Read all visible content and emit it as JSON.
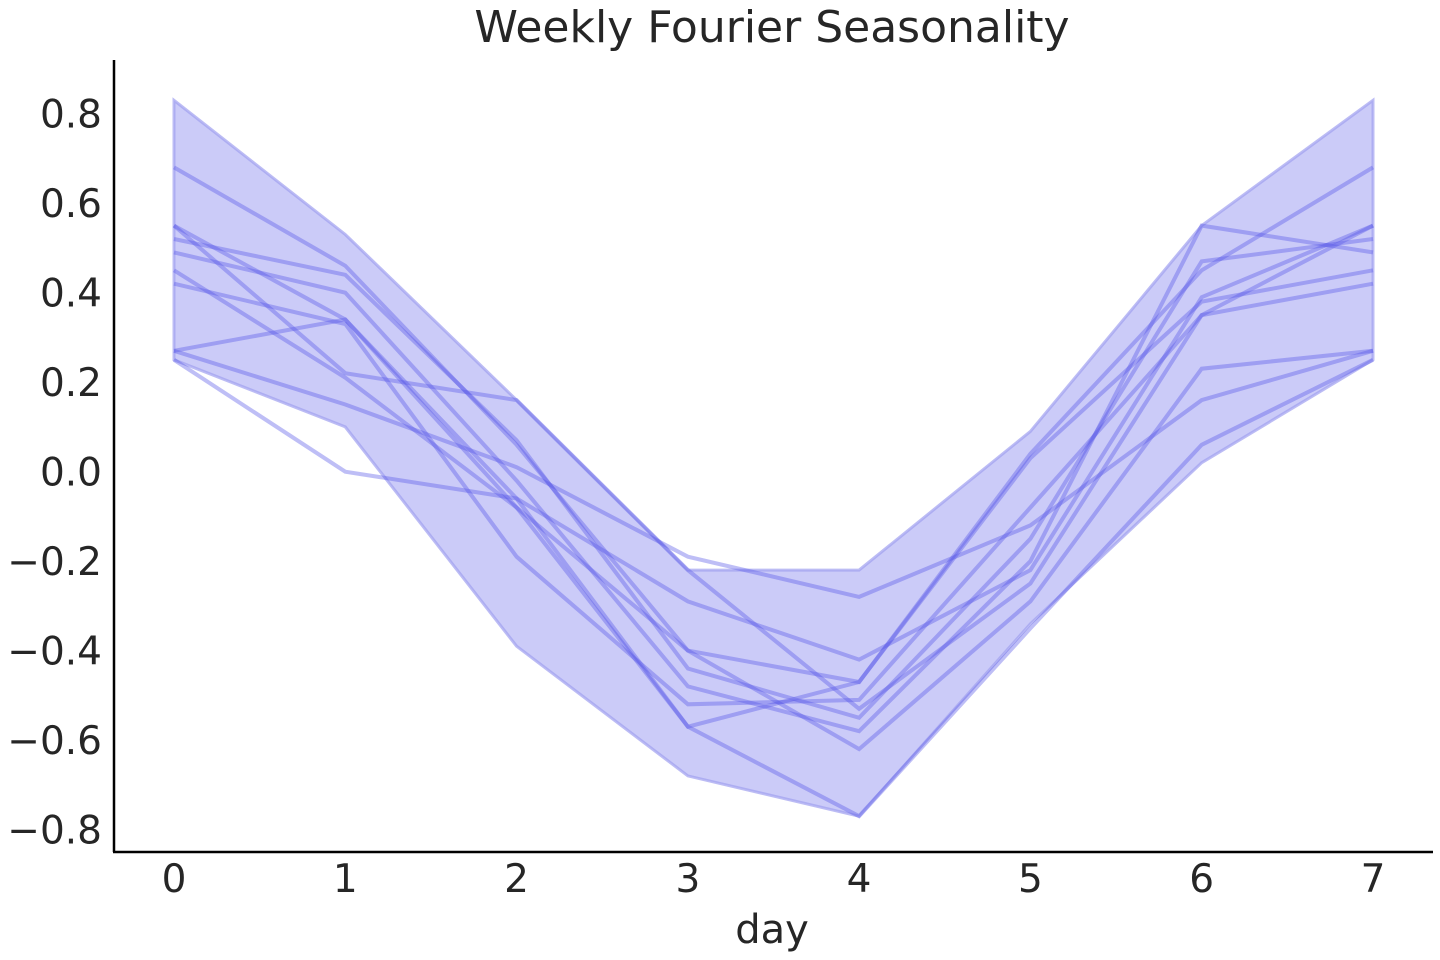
{
  "chart_data": {
    "type": "line",
    "title": "Weekly Fourier Seasonality",
    "xlabel": "day",
    "ylabel": "",
    "x": [
      0,
      1,
      2,
      3,
      4,
      5,
      6,
      7
    ],
    "xlim": [
      -0.35,
      7.35
    ],
    "ylim": [
      -0.85,
      0.92
    ],
    "xticks": [
      0,
      1,
      2,
      3,
      4,
      5,
      6,
      7
    ],
    "yticks": [
      0.8,
      0.6,
      0.4,
      0.2,
      0.0,
      -0.2,
      -0.4,
      -0.6,
      -0.8
    ],
    "ytick_labels": [
      "0.8",
      "0.6",
      "0.4",
      "0.2",
      "0.0",
      "−0.2",
      "−0.4",
      "−0.6",
      "−0.8"
    ],
    "grid": false,
    "band": {
      "upper": [
        0.83,
        0.53,
        0.16,
        -0.22,
        -0.22,
        0.09,
        0.55,
        0.83
      ],
      "lower": [
        0.25,
        0.1,
        -0.39,
        -0.68,
        -0.77,
        -0.34,
        0.02,
        0.25
      ]
    },
    "series": [
      {
        "values": [
          0.68,
          0.46,
          0.06,
          -0.4,
          -0.47,
          0.04,
          0.45,
          0.68
        ]
      },
      {
        "values": [
          0.55,
          0.34,
          -0.06,
          -0.29,
          -0.42,
          -0.22,
          0.39,
          0.55
        ]
      },
      {
        "values": [
          0.52,
          0.44,
          0.07,
          -0.44,
          -0.55,
          -0.15,
          0.47,
          0.52
        ]
      },
      {
        "values": [
          0.49,
          0.4,
          -0.02,
          -0.48,
          -0.58,
          -0.2,
          0.55,
          0.49
        ]
      },
      {
        "values": [
          0.45,
          0.21,
          -0.08,
          -0.57,
          -0.47,
          0.03,
          0.38,
          0.45
        ]
      },
      {
        "values": [
          0.42,
          0.33,
          -0.19,
          -0.52,
          -0.51,
          -0.08,
          0.35,
          0.42
        ]
      },
      {
        "values": [
          0.27,
          0.34,
          -0.08,
          -0.4,
          -0.62,
          -0.29,
          0.23,
          0.27
        ]
      },
      {
        "values": [
          0.27,
          0.15,
          0.01,
          -0.19,
          -0.28,
          -0.12,
          0.16,
          0.27
        ]
      },
      {
        "values": [
          0.25,
          0.0,
          -0.06,
          -0.57,
          -0.77,
          -0.35,
          0.06,
          0.25
        ]
      },
      {
        "values": [
          0.55,
          0.22,
          0.16,
          -0.22,
          -0.53,
          -0.25,
          0.35,
          0.55
        ]
      }
    ],
    "colors": {
      "band_fill": "#c8c8f8",
      "band_edge": "#a0a0f0",
      "line": "#5555e8",
      "axis": "#000000",
      "text": "#262626"
    }
  }
}
